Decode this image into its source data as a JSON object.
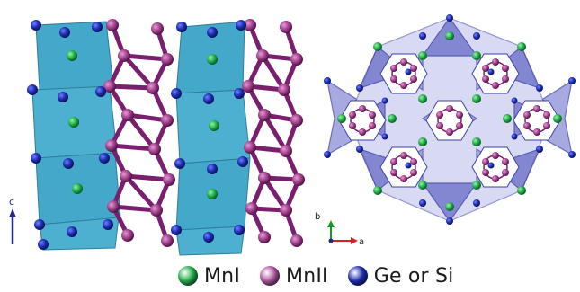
{
  "legend": [
    {
      "label": "MnI",
      "color": "#22b14c"
    },
    {
      "label": "MnII",
      "color": "#b0569f"
    },
    {
      "label": "Ge or Si",
      "color": "#1f2fb3"
    }
  ],
  "side_view": {
    "axis_label": "c"
  },
  "top_view": {
    "axis_label_b": "b",
    "axis_label_a": "a"
  },
  "colors": {
    "octahedron_face": "#2f9fc4",
    "mnII_bond": "#7a1f6e",
    "ge_si_atom": "#1f2fb3",
    "mnI_atom": "#22b14c",
    "top_view_polyhedra": "#6f73c9"
  }
}
